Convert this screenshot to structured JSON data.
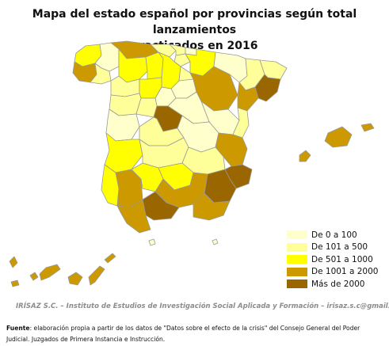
{
  "title_line1": "Mapa del estado español por provincias según total lanzamientos",
  "title_line2": "practicados en 2016",
  "legend": [
    {
      "label": "De 0 a 100",
      "color": "#ffffcc"
    },
    {
      "label": "De 101 a 500",
      "color": "#ffff99"
    },
    {
      "label": "De 501 a 1000",
      "color": "#ffff00"
    },
    {
      "label": "De 1001 a 2000",
      "color": "#cc9900"
    },
    {
      "label": "Más de 2000",
      "color": "#996600"
    }
  ],
  "credit": "IRÍSAZ S.C.  –  Instituto de Estudios de Investigación Social Aplicada y Formación – irisaz.s.c@gmail.com",
  "source": {
    "label": "Fuente",
    "text": ": elaboración propia a partir de los datos de \"Datos sobre el efecto de la crisis\" del Consejo General del Poder Judicial. Juzgados de Primera Instancia e Instrucción."
  },
  "colors": {
    "border": "#999999",
    "class_0_100": "#ffffcc",
    "class_101_500": "#ffff99",
    "class_501_1000": "#ffff00",
    "class_1001_2000": "#cc9900",
    "class_mas_2000": "#996600"
  }
}
